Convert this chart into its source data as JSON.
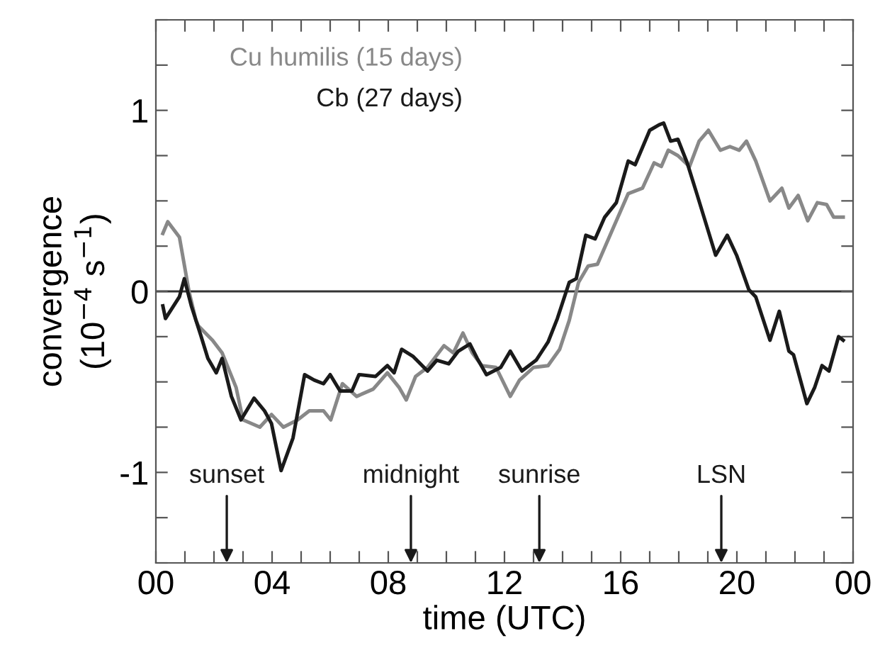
{
  "chart_data": {
    "type": "line",
    "xlabel": "time (UTC)",
    "ylabel": "convergence\n(10$^{−4}$ s$^{−1}$)",
    "xlim": [
      0,
      24
    ],
    "ylim": [
      -1.5,
      1.5
    ],
    "xticks": [
      {
        "value": 0,
        "label": "00"
      },
      {
        "value": 1,
        "label": null
      },
      {
        "value": 2,
        "label": null
      },
      {
        "value": 3,
        "label": null
      },
      {
        "value": 4,
        "label": "04"
      },
      {
        "value": 5,
        "label": null
      },
      {
        "value": 6,
        "label": null
      },
      {
        "value": 7,
        "label": null
      },
      {
        "value": 8,
        "label": "08"
      },
      {
        "value": 9,
        "label": null
      },
      {
        "value": 10,
        "label": null
      },
      {
        "value": 11,
        "label": null
      },
      {
        "value": 12,
        "label": "12"
      },
      {
        "value": 13,
        "label": null
      },
      {
        "value": 14,
        "label": null
      },
      {
        "value": 15,
        "label": null
      },
      {
        "value": 16,
        "label": "16"
      },
      {
        "value": 17,
        "label": null
      },
      {
        "value": 18,
        "label": null
      },
      {
        "value": 19,
        "label": null
      },
      {
        "value": 20,
        "label": "20"
      },
      {
        "value": 21,
        "label": null
      },
      {
        "value": 22,
        "label": null
      },
      {
        "value": 23,
        "label": null
      },
      {
        "value": 24,
        "label": "00"
      }
    ],
    "yticks": [
      {
        "value": -1.5,
        "label": null
      },
      {
        "value": -1.25,
        "label": null
      },
      {
        "value": -1,
        "label": "-1"
      },
      {
        "value": -0.75,
        "label": null
      },
      {
        "value": -0.5,
        "label": null
      },
      {
        "value": -0.25,
        "label": null
      },
      0,
      {
        "value": 0.25,
        "label": null
      },
      {
        "value": 0.5,
        "label": null
      },
      {
        "value": 0.75,
        "label": null
      },
      1,
      {
        "value": 1.25,
        "label": null
      },
      {
        "value": 1.5,
        "label": null
      }
    ],
    "grid": false,
    "legend": "top left",
    "marker": "none",
    "line_style": "solid",
    "ref_lines": [
      {
        "axis": "y",
        "value": 0,
        "color": "#333333"
      }
    ],
    "annotations": [
      "sunset",
      "midnight",
      "sunrise",
      "LSN"
    ],
    "series": [
      {
        "name": "Cu humilis (15 days)",
        "color": "#888888",
        "x": [
          0.24,
          0.41,
          0.81,
          1.14,
          1.38,
          1.46,
          1.95,
          2.28,
          2.76,
          3.0,
          3.58,
          3.98,
          4.39,
          4.88,
          5.28,
          5.77,
          6.02,
          6.42,
          6.91,
          7.48,
          7.97,
          8.37,
          8.62,
          8.94,
          9.35,
          9.92,
          10.24,
          10.57,
          10.89,
          11.22,
          11.71,
          12.2,
          12.52,
          13.0,
          13.5,
          13.9,
          14.23,
          14.55,
          14.88,
          15.2,
          15.77,
          16.26,
          16.75,
          17.15,
          17.4,
          17.64,
          17.97,
          18.37,
          18.7,
          19.02,
          19.43,
          19.76,
          20.08,
          20.33,
          20.65,
          21.14,
          21.55,
          21.79,
          22.11,
          22.44,
          22.77,
          23.09,
          23.33,
          23.66
        ],
        "values": [
          0.32,
          0.385,
          0.3,
          0,
          -0.16,
          -0.19,
          -0.27,
          -0.34,
          -0.53,
          -0.71,
          -0.75,
          -0.68,
          -0.75,
          -0.71,
          -0.66,
          -0.66,
          -0.71,
          -0.51,
          -0.58,
          -0.54,
          -0.45,
          -0.53,
          -0.6,
          -0.47,
          -0.42,
          -0.3,
          -0.34,
          -0.23,
          -0.34,
          -0.41,
          -0.42,
          -0.58,
          -0.49,
          -0.42,
          -0.41,
          -0.32,
          -0.16,
          0.05,
          0.14,
          0.15,
          0.36,
          0.54,
          0.57,
          0.71,
          0.69,
          0.78,
          0.75,
          0.69,
          0.83,
          0.89,
          0.78,
          0.8,
          0.78,
          0.83,
          0.72,
          0.5,
          0.57,
          0.46,
          0.53,
          0.39,
          0.49,
          0.48,
          0.41,
          0.41
        ]
      },
      {
        "name": "Cb (27 days)",
        "color": "#1a1a1a",
        "x": [
          0.24,
          0.33,
          0.65,
          0.81,
          0.98,
          1.22,
          1.54,
          1.79,
          2.08,
          2.28,
          2.6,
          2.93,
          3.38,
          3.74,
          3.98,
          4.31,
          4.72,
          5.12,
          5.45,
          5.77,
          6.0,
          6.34,
          6.75,
          6.99,
          7.56,
          7.97,
          8.2,
          8.46,
          8.86,
          9.35,
          9.67,
          10.08,
          10.41,
          10.81,
          11.06,
          11.38,
          11.87,
          12.2,
          12.6,
          13.09,
          13.5,
          13.82,
          14.23,
          14.47,
          14.8,
          15.12,
          15.45,
          15.85,
          16.26,
          16.5,
          17.0,
          17.32,
          17.48,
          17.72,
          17.97,
          18.29,
          18.62,
          19.27,
          19.67,
          19.99,
          20.41,
          20.65,
          21.14,
          21.46,
          21.79,
          21.95,
          22.41,
          22.68,
          22.93,
          23.17,
          23.5,
          23.66
        ],
        "values": [
          -0.08,
          -0.15,
          -0.07,
          -0.03,
          0.07,
          -0.08,
          -0.24,
          -0.37,
          -0.45,
          -0.37,
          -0.58,
          -0.71,
          -0.59,
          -0.66,
          -0.73,
          -0.99,
          -0.81,
          -0.46,
          -0.49,
          -0.51,
          -0.46,
          -0.55,
          -0.55,
          -0.46,
          -0.47,
          -0.41,
          -0.45,
          -0.32,
          -0.36,
          -0.44,
          -0.38,
          -0.4,
          -0.33,
          -0.29,
          -0.37,
          -0.46,
          -0.42,
          -0.33,
          -0.44,
          -0.38,
          -0.28,
          -0.15,
          0.05,
          0.07,
          0.31,
          0.29,
          0.41,
          0.49,
          0.72,
          0.7,
          0.89,
          0.92,
          0.93,
          0.83,
          0.84,
          0.71,
          0.54,
          0.2,
          0.31,
          0.2,
          0.01,
          -0.03,
          -0.27,
          -0.11,
          -0.33,
          -0.35,
          -0.62,
          -0.53,
          -0.41,
          -0.44,
          -0.25,
          -0.27
        ]
      }
    ]
  }
}
